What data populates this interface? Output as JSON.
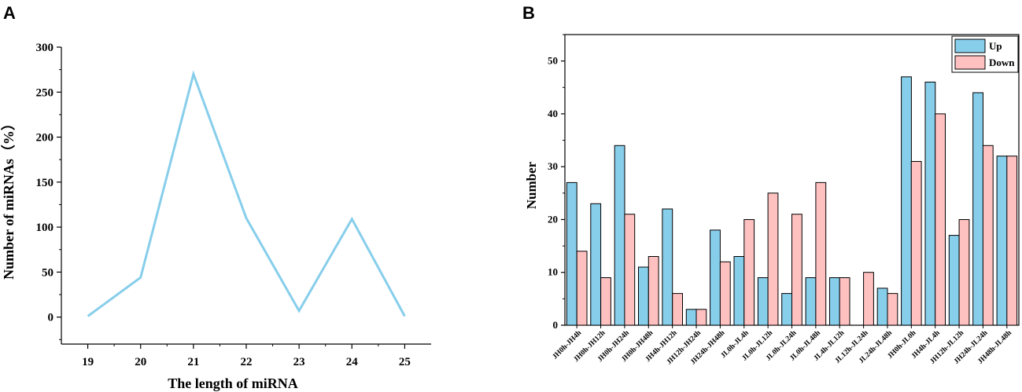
{
  "chart_data": [
    {
      "panel": "A",
      "type": "line",
      "title": "",
      "xlabel": "The length of miRNA",
      "ylabel": "Number of miRNAs（%）",
      "x": [
        19,
        20,
        21,
        22,
        23,
        24,
        25
      ],
      "y": [
        1,
        44,
        270,
        110,
        7,
        109,
        1
      ],
      "xticks": [
        "19",
        "20",
        "21",
        "22",
        "23",
        "24",
        "25"
      ],
      "yticks": [
        "0",
        "50",
        "100",
        "150",
        "200",
        "250",
        "300"
      ],
      "ylim": [
        -30,
        300
      ],
      "xlim": [
        18.5,
        25.5
      ],
      "line_color": "#87CEEB"
    },
    {
      "panel": "B",
      "type": "bar",
      "title": "",
      "xlabel": "",
      "ylabel": "Number",
      "categories": [
        "JH0h-JH4h",
        "JH0h-JH12h",
        "JH0h-JH24h",
        "JH0h-JH48h",
        "JH4h-JH12h",
        "JH12h-JH24h",
        "JH24h-JH48h",
        "JL0h-JL4h",
        "JL0h-JL12h",
        "JL0h-JL24h",
        "JL0h-JL48h",
        "JL4h-JL12h",
        "JL12h-JL24h",
        "JL24h-JL48h",
        "JH0h-JL0h",
        "JH4h-JL4h",
        "JH12h-JL12h",
        "JH24h-JL24h",
        "JH48h-JL48h"
      ],
      "series": [
        {
          "name": "Up",
          "color": "#87CEEB",
          "values": [
            27,
            23,
            34,
            11,
            22,
            3,
            18,
            13,
            9,
            6,
            9,
            9,
            0,
            7,
            47,
            46,
            17,
            44,
            32
          ]
        },
        {
          "name": "Down",
          "color": "#FFC0C0",
          "values": [
            14,
            9,
            21,
            13,
            6,
            3,
            12,
            20,
            25,
            21,
            27,
            9,
            10,
            6,
            31,
            40,
            20,
            34,
            32
          ]
        }
      ],
      "yticks": [
        "0",
        "10",
        "20",
        "30",
        "40",
        "50"
      ],
      "ylim": [
        0,
        55
      ],
      "legend": "top-right"
    }
  ]
}
